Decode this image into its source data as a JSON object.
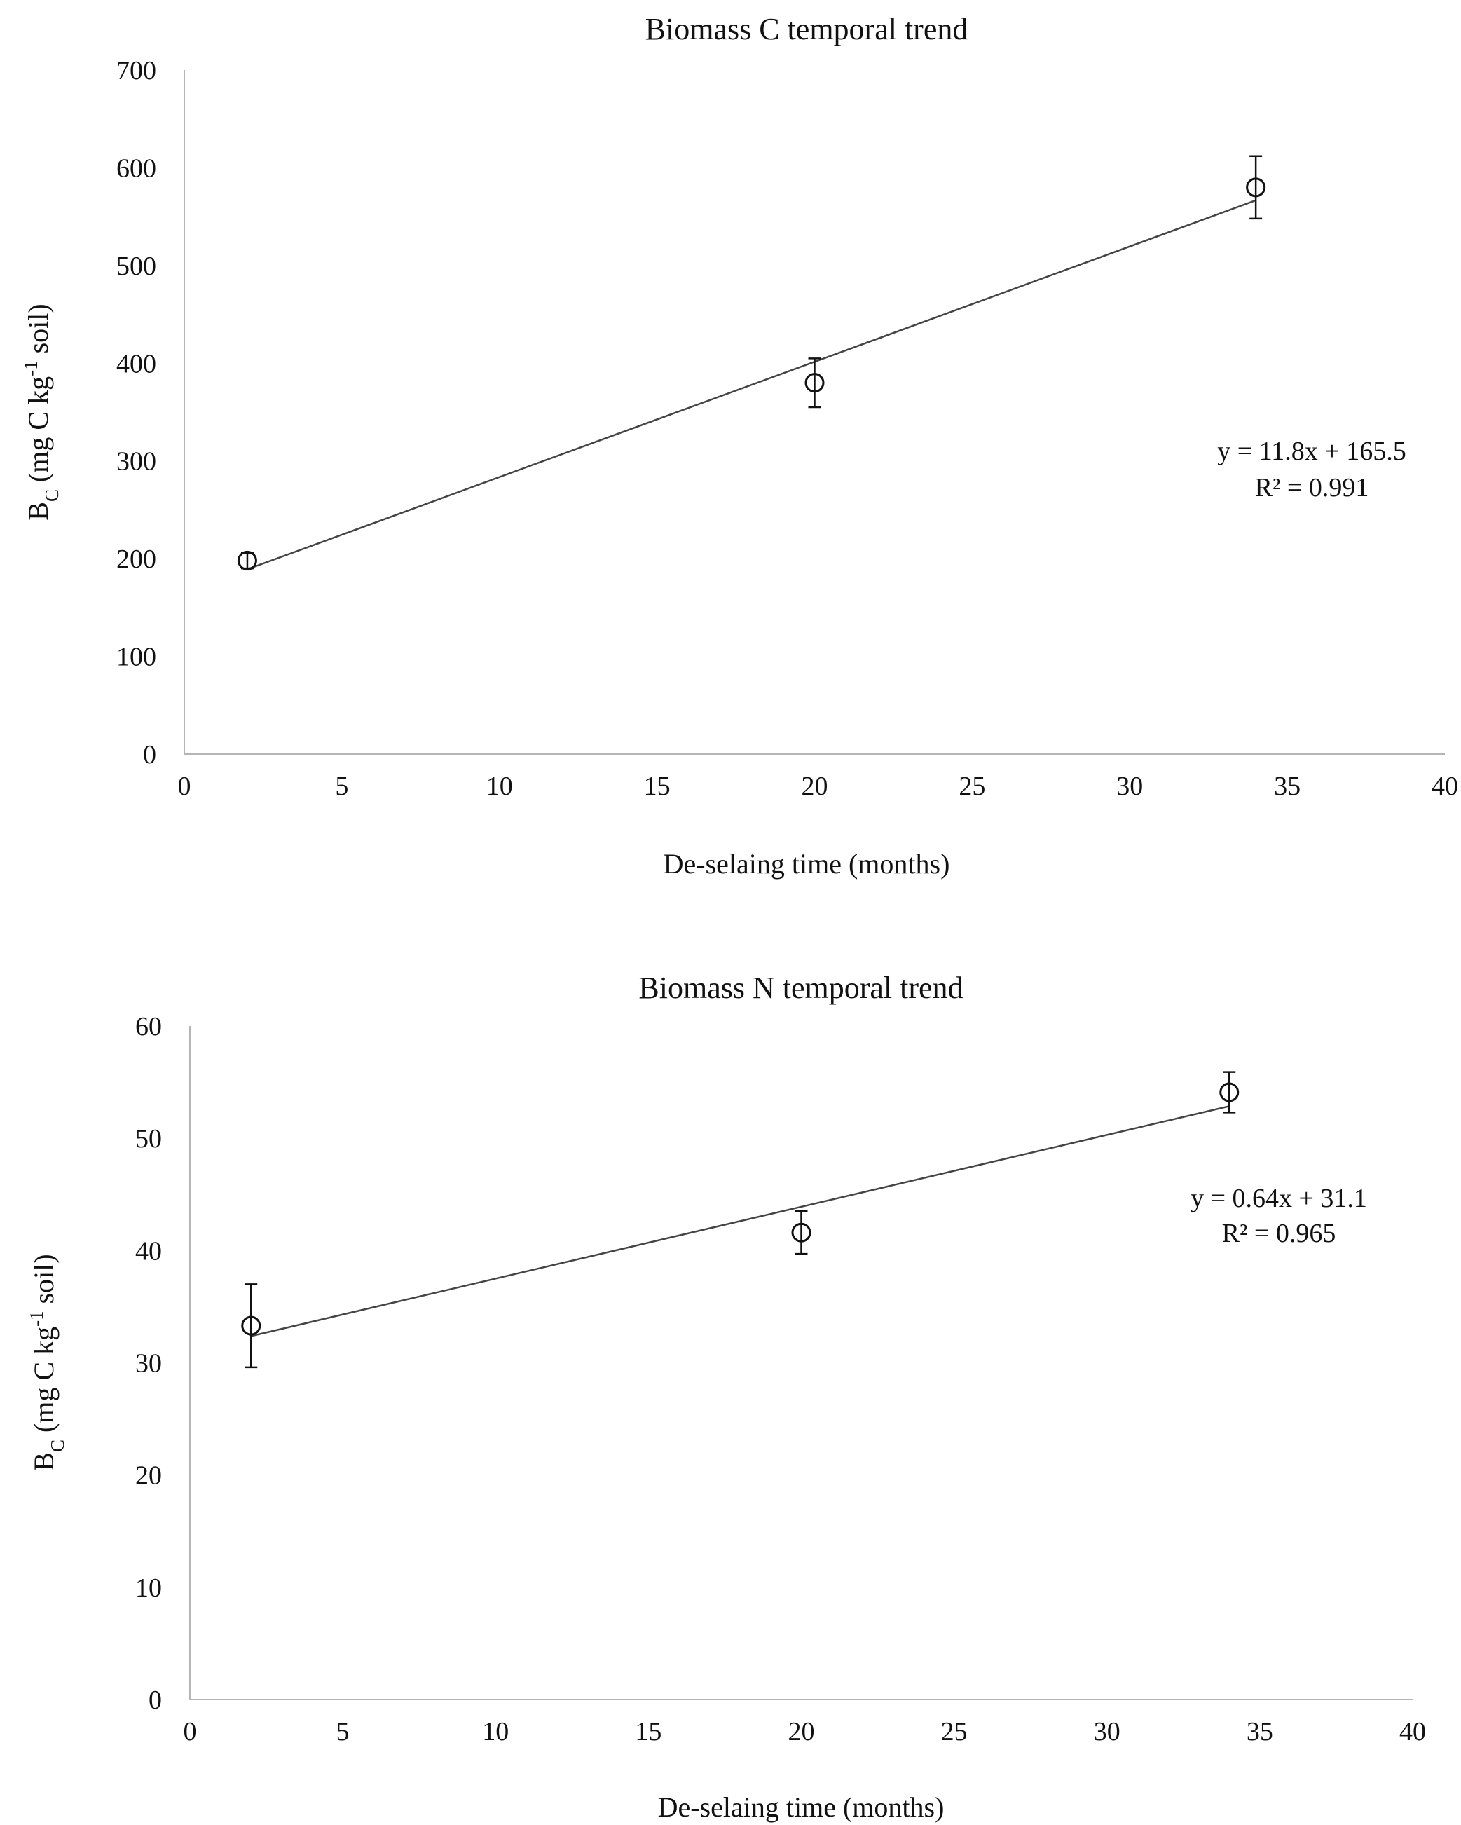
{
  "chart_data": [
    {
      "type": "scatter",
      "title": "Biomass C temporal trend",
      "xlabel": "De-selaing time (months)",
      "ylabel_main": "B",
      "ylabel_sub": "C",
      "ylabel_rest1": " (mg C kg",
      "ylabel_sup": "-1",
      "ylabel_rest2": " soil)",
      "xlim": [
        0,
        40
      ],
      "ylim": [
        0,
        700
      ],
      "xticks": [
        0,
        5,
        10,
        15,
        20,
        25,
        30,
        35,
        40
      ],
      "yticks": [
        0,
        100,
        200,
        300,
        400,
        500,
        600,
        700
      ],
      "x": [
        2,
        20,
        34
      ],
      "y": [
        198,
        380,
        580
      ],
      "error": [
        8,
        25,
        32
      ],
      "trendline": {
        "slope": 11.8,
        "intercept": 165.5
      },
      "equation": "y = 11.8x + 165.5",
      "r2": "R² = 0.991",
      "legend": "none",
      "grid": false
    },
    {
      "type": "scatter",
      "title": "Biomass N temporal trend",
      "xlabel": "De-selaing time (months)",
      "ylabel_main": "B",
      "ylabel_sub": "C",
      "ylabel_rest1": " (mg C kg",
      "ylabel_sup": "-1",
      "ylabel_rest2": " soil)",
      "xlim": [
        0,
        40
      ],
      "ylim": [
        0,
        60
      ],
      "xticks": [
        0,
        5,
        10,
        15,
        20,
        25,
        30,
        35,
        40
      ],
      "yticks": [
        0,
        10,
        20,
        30,
        40,
        50,
        60
      ],
      "x": [
        2,
        20,
        34
      ],
      "y": [
        33.3,
        41.6,
        54.1
      ],
      "error": [
        3.7,
        1.9,
        1.8
      ],
      "trendline": {
        "slope": 0.64,
        "intercept": 31.1
      },
      "equation": "y = 0.64x + 31.1",
      "r2": "R² = 0.965",
      "legend": "none",
      "grid": false
    }
  ],
  "colors": {
    "axis": "#b5b5b5",
    "marker": "#111111",
    "trendline": "#444444",
    "text": "#111111"
  }
}
